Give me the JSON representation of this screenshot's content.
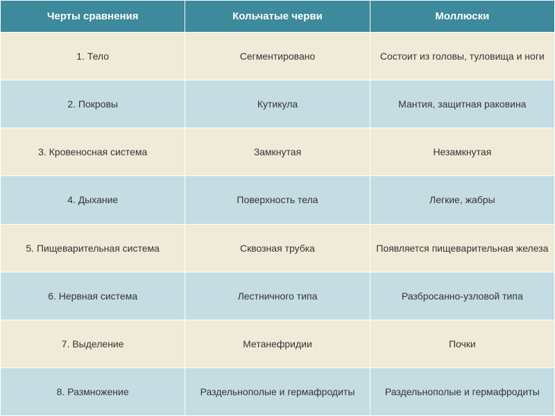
{
  "table": {
    "type": "table",
    "columns": [
      "Черты сравнения",
      "Кольчатые черви",
      "Моллюски"
    ],
    "rows": [
      [
        "1. Тело",
        "Сегментировано",
        "Состоит из головы, туловища и ноги"
      ],
      [
        "2. Покровы",
        "Кутикула",
        "Мантия, защитная раковина"
      ],
      [
        "3. Кровеносная система",
        "Замкнутая",
        "Незамкнутая"
      ],
      [
        "4. Дыхание",
        "Поверхность тела",
        "Легкие, жабры"
      ],
      [
        "5. Пищеварительная система",
        "Сквозная трубка",
        "Появляется пищеварительная железа"
      ],
      [
        "6. Нервная система",
        "Лестничного типа",
        "Разбросанно-узловой типа"
      ],
      [
        "7. Выделение",
        "Метанефридии",
        "Почки"
      ],
      [
        "8. Размножение",
        "Раздельнополые и гермафродиты",
        "Раздельнополые и гермафродиты"
      ]
    ],
    "header_bg": "#3c8a9b",
    "header_text_color": "#ffffff",
    "row_beige_bg": "#f0ead8",
    "row_blue_bg": "#c5dce3",
    "text_color": "#333333",
    "header_fontsize": 15,
    "cell_fontsize": 14
  }
}
